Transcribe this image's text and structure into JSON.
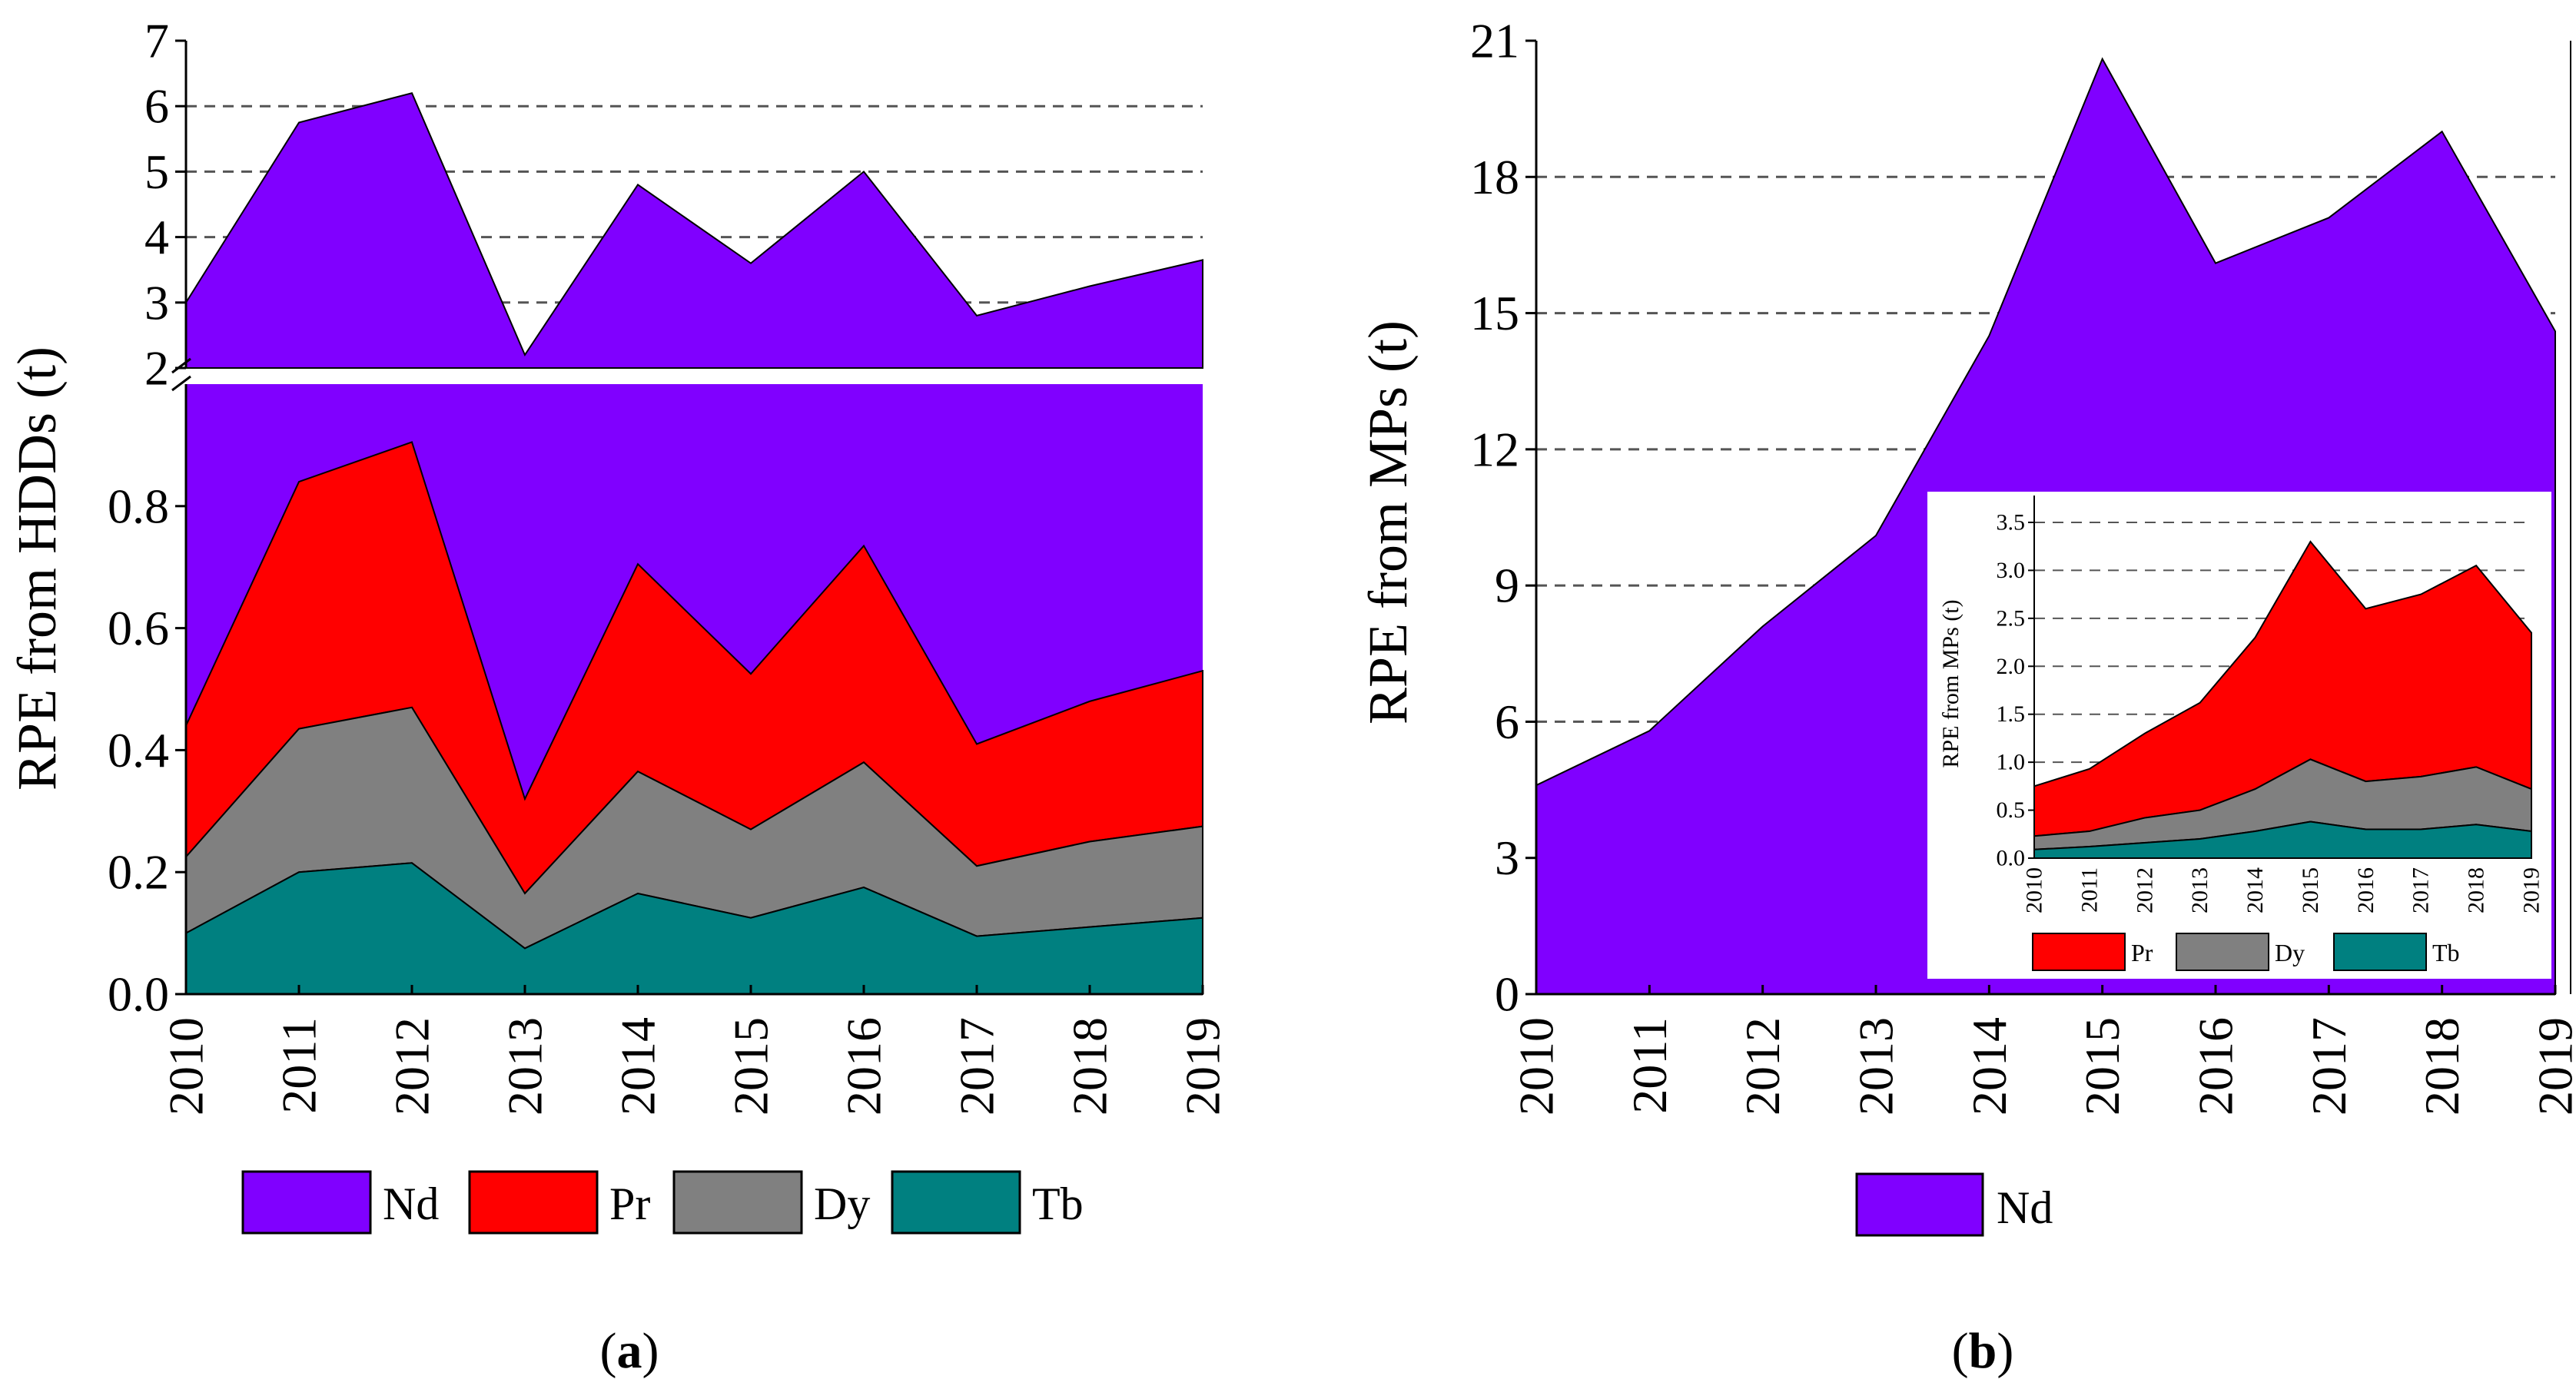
{
  "colors": {
    "Nd": "#8000ff",
    "Pr": "#ff0000",
    "Dy": "#808080",
    "Tb": "#008080"
  },
  "chart_data": [
    {
      "id": "a",
      "type": "area",
      "stacked": true,
      "caption_letter": "a",
      "ylabel": "RPE from HDDs (t)",
      "xlabel": "",
      "categories": [
        "2010",
        "2011",
        "2012",
        "2013",
        "2014",
        "2015",
        "2016",
        "2017",
        "2018",
        "2019"
      ],
      "broken_axis": {
        "lower_ylim": [
          0,
          1.0
        ],
        "upper_ylim": [
          2,
          7
        ]
      },
      "lower_yticks": [
        "0.0",
        "0.2",
        "0.4",
        "0.6",
        "0.8"
      ],
      "upper_yticks": [
        "2",
        "3",
        "4",
        "5",
        "6",
        "7"
      ],
      "grid": "dashed horizontal (upper panel)",
      "series_cumulative": [
        {
          "name": "Tb",
          "values": [
            0.1,
            0.2,
            0.215,
            0.075,
            0.165,
            0.125,
            0.175,
            0.095,
            0.11,
            0.125
          ]
        },
        {
          "name": "Dy",
          "values": [
            0.225,
            0.435,
            0.47,
            0.165,
            0.365,
            0.27,
            0.38,
            0.21,
            0.25,
            0.275
          ]
        },
        {
          "name": "Pr",
          "values": [
            0.44,
            0.84,
            0.905,
            0.32,
            0.705,
            0.525,
            0.735,
            0.41,
            0.48,
            0.53
          ]
        },
        {
          "name": "Nd",
          "values": [
            3.0,
            5.75,
            6.2,
            2.2,
            4.8,
            3.6,
            5.0,
            2.8,
            3.25,
            3.65
          ]
        }
      ],
      "legend": [
        "Nd",
        "Pr",
        "Dy",
        "Tb"
      ],
      "legend_position": "bottom"
    },
    {
      "id": "b",
      "type": "area",
      "caption_letter": "b",
      "ylabel": "RPE from MPs (t)",
      "categories": [
        "2010",
        "2011",
        "2012",
        "2013",
        "2014",
        "2015",
        "2016",
        "2017",
        "2018",
        "2019"
      ],
      "ylim": [
        0,
        21
      ],
      "yticks": [
        "0",
        "3",
        "6",
        "9",
        "12",
        "15",
        "18",
        "21"
      ],
      "grid": "dashed horizontal",
      "series": [
        {
          "name": "Nd",
          "values": [
            4.6,
            5.8,
            8.1,
            10.1,
            14.5,
            20.6,
            16.1,
            17.1,
            19.0,
            14.6
          ]
        }
      ],
      "legend": [
        "Nd"
      ],
      "legend_position": "bottom",
      "inset": {
        "type": "area",
        "stacked": true,
        "ylabel": "RPE from MPs (t)",
        "ylim": [
          0,
          3.7
        ],
        "yticks": [
          "0.0",
          "0.5",
          "1.0",
          "1.5",
          "2.0",
          "2.5",
          "3.0",
          "3.5"
        ],
        "categories": [
          "2010",
          "2011",
          "2012",
          "2013",
          "2014",
          "2015",
          "2016",
          "2017",
          "2018",
          "2019"
        ],
        "series_cumulative": [
          {
            "name": "Tb",
            "values": [
              0.09,
              0.12,
              0.16,
              0.2,
              0.28,
              0.38,
              0.3,
              0.3,
              0.35,
              0.28
            ]
          },
          {
            "name": "Dy",
            "values": [
              0.23,
              0.28,
              0.42,
              0.5,
              0.72,
              1.03,
              0.8,
              0.85,
              0.95,
              0.72
            ]
          },
          {
            "name": "Pr",
            "values": [
              0.75,
              0.93,
              1.3,
              1.62,
              2.3,
              3.3,
              2.6,
              2.75,
              3.05,
              2.35
            ]
          }
        ],
        "legend": [
          "Pr",
          "Dy",
          "Tb"
        ]
      }
    }
  ]
}
